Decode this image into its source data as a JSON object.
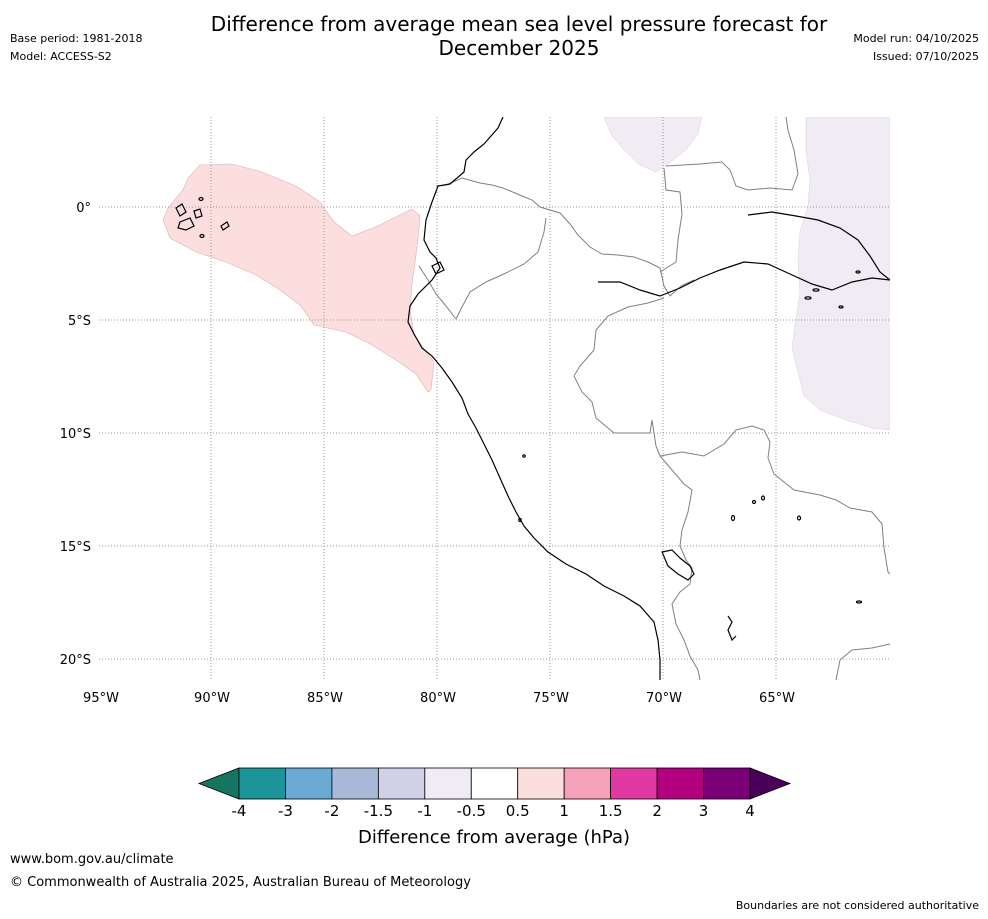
{
  "title": "Difference from average mean sea level pressure forecast for December 2025",
  "header": {
    "base_period": "Base period: 1981-2018",
    "model": "Model: ACCESS-S2",
    "model_run": "Model run: 04/10/2025",
    "issued": "Issued: 07/10/2025"
  },
  "map": {
    "lat_labels": [
      "0°",
      "5°S",
      "10°S",
      "15°S",
      "20°S"
    ],
    "lon_labels": [
      "95°W",
      "90°W",
      "85°W",
      "80°W",
      "75°W",
      "70°W",
      "65°W"
    ],
    "lat_values": [
      0,
      -5,
      -10,
      -15,
      -20
    ],
    "lon_values": [
      -95,
      -90,
      -85,
      -80,
      -75,
      -70,
      -65
    ],
    "extent": {
      "lon_min": -95,
      "lon_max": -61.5,
      "lat_min": -21,
      "lat_max": 4
    },
    "regions": [
      {
        "name": "positive-anomaly-pacific",
        "category": "0.5 to 1",
        "color": "#fbdedd"
      },
      {
        "name": "negative-anomaly-amazon",
        "category": "-1 to -0.5",
        "color": "#f1ecf3"
      }
    ],
    "land_color": "#ffffff",
    "coastline_color": "#000000",
    "border_color": "#808080",
    "grid_color": "#999999"
  },
  "colorbar": {
    "label": "Difference from average (hPa)",
    "ticks": [
      "-4",
      "-3",
      "-2",
      "-1.5",
      "-1",
      "-0.5",
      "0.5",
      "1",
      "1.5",
      "2",
      "3",
      "4"
    ],
    "colors": [
      "#167562",
      "#1b9598",
      "#6baad2",
      "#a8b9d8",
      "#d0d1e6",
      "#f1ecf3",
      "#ffffff",
      "#fbdedd",
      "#f6a0bb",
      "#e03aa2",
      "#b3007e",
      "#7b0078"
    ],
    "under_color": "#167562",
    "over_color": "#4a005a"
  },
  "footer": {
    "url": "www.bom.gov.au/climate",
    "copyright": "© Commonwealth of Australia 2025, Australian Bureau of Meteorology",
    "disclaimer": "Boundaries are not considered authoritative"
  }
}
